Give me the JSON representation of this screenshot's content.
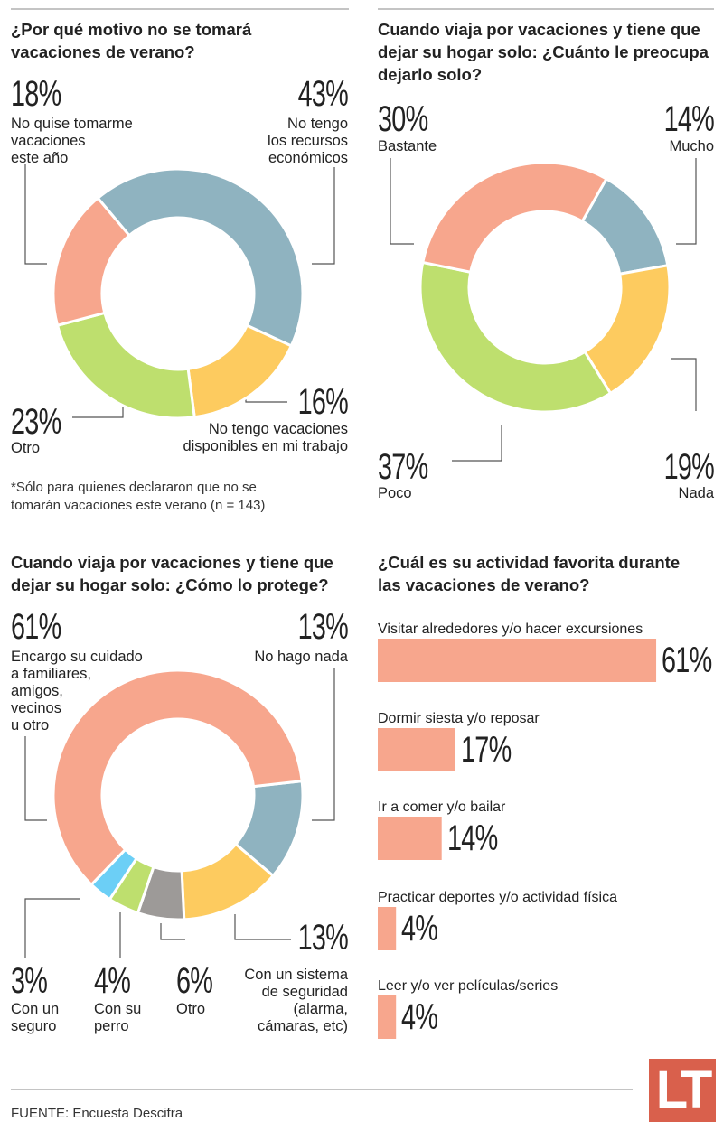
{
  "colors": {
    "salmon": "#F7A68D",
    "blue": "#8FB3C0",
    "yellow": "#FDCB5F",
    "green": "#BEDF6E",
    "gray": "#9D9A98",
    "cyan": "#6CCFF6",
    "logo": "#D9604C"
  },
  "chart_data": [
    {
      "type": "pie",
      "title": "¿Por qué motivo no se tomará vacaciones de verano?",
      "slices": [
        {
          "label": "No tengo los recursos económicos",
          "value": 43,
          "pct": "43%",
          "color": "#8FB3C0"
        },
        {
          "label": "No tengo vacaciones disponibles en mi trabajo",
          "value": 16,
          "pct": "16%",
          "color": "#FDCB5F"
        },
        {
          "label": "Otro",
          "value": 23,
          "pct": "23%",
          "color": "#BEDF6E"
        },
        {
          "label": "No quise tomarme vacaciones este año",
          "value": 18,
          "pct": "18%",
          "color": "#F7A68D"
        }
      ],
      "note": "*Sólo para quienes declararon que no se tomarán vacaciones este verano (n = 143)"
    },
    {
      "type": "pie",
      "title": "Cuando viaja por vacaciones y tiene que dejar su hogar solo: ¿Cuánto le preocupa dejarlo solo?",
      "slices": [
        {
          "label": "Mucho",
          "value": 14,
          "pct": "14%",
          "color": "#8FB3C0"
        },
        {
          "label": "Nada",
          "value": 19,
          "pct": "19%",
          "color": "#FDCB5F"
        },
        {
          "label": "Poco",
          "value": 37,
          "pct": "37%",
          "color": "#BEDF6E"
        },
        {
          "label": "Bastante",
          "value": 30,
          "pct": "30%",
          "color": "#F7A68D"
        }
      ]
    },
    {
      "type": "pie",
      "title": "Cuando viaja por vacaciones y tiene que dejar su hogar solo: ¿Cómo lo protege?",
      "slices": [
        {
          "label": "No hago nada",
          "value": 13,
          "pct": "13%",
          "color": "#8FB3C0"
        },
        {
          "label": "Con un sistema de seguridad (alarma, cámaras, etc)",
          "value": 13,
          "pct": "13%",
          "color": "#FDCB5F"
        },
        {
          "label": "Otro",
          "value": 6,
          "pct": "6%",
          "color": "#9D9A98"
        },
        {
          "label": "Con su perro",
          "value": 4,
          "pct": "4%",
          "color": "#BEDF6E"
        },
        {
          "label": "Con un seguro",
          "value": 3,
          "pct": "3%",
          "color": "#6CCFF6"
        },
        {
          "label": "Encargo su cuidado a familiares, amigos, vecinos u otro",
          "value": 61,
          "pct": "61%",
          "color": "#F7A68D"
        }
      ]
    },
    {
      "type": "bar",
      "title": "¿Cuál es su actividad favorita durante las vacaciones de verano?",
      "categories": [
        "Visitar alrededores y/o hacer excursiones",
        "Dormir siesta y/o reposar",
        "Ir a comer y/o bailar",
        "Practicar deportes y/o actividad física",
        "Leer y/o ver películas/series"
      ],
      "values": [
        61,
        17,
        14,
        4,
        4
      ],
      "labels": [
        "61%",
        "17%",
        "14%",
        "4%",
        "4%"
      ],
      "color": "#F7A68D"
    }
  ],
  "c1_labels": {
    "l0": "No tengo",
    "l0b": "los recursos",
    "l0c": "económicos",
    "l1": "No tengo vacaciones",
    "l1b": "disponibles en mi trabajo",
    "l3": "No quise tomarme",
    "l3b": "vacaciones",
    "l3c": "este año",
    "t1": "¿Por qué motivo no se tomará",
    "t2": "vacaciones de verano?",
    "n1": "*Sólo para quienes declararon que no se",
    "n2": "tomarán vacaciones este verano (n = 143)"
  },
  "c2_labels": {
    "t1": "Cuando viaja por vacaciones y tiene que",
    "t2": "dejar su hogar solo: ¿Cuánto le preocupa",
    "t3": "dejarlo solo?"
  },
  "c3_labels": {
    "t1": "Cuando viaja por vacaciones y tiene que",
    "t2": "dejar su hogar solo: ¿Cómo lo protege?",
    "l5a": "Encargo su cuidado",
    "l5b": "a familiares,",
    "l5c": "amigos,",
    "l5d": "vecinos",
    "l5e": "u otro",
    "l1a": "Con un sistema",
    "l1b": "de seguridad",
    "l1c": "(alarma,",
    "l1d": "cámaras, etc)",
    "l3a": "Con su",
    "l3b": "perro",
    "l4a": "Con un",
    "l4b": "seguro"
  },
  "c4_labels": {
    "t1": "¿Cuál es su actividad favorita durante",
    "t2": "las vacaciones de verano?"
  },
  "footer": {
    "source": "FUENTE: Encuesta Descifra",
    "logo": "LT"
  }
}
